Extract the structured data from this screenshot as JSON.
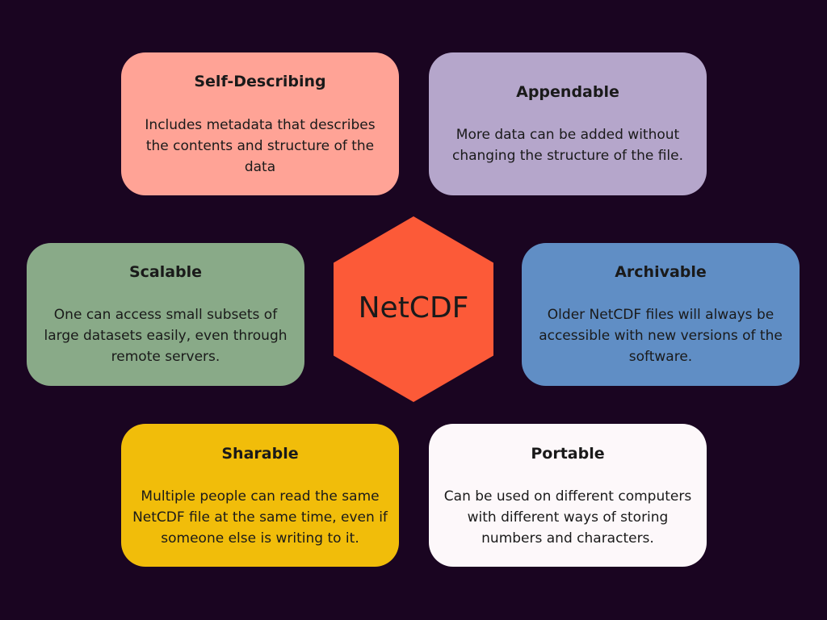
{
  "center": {
    "label": "NetCDF",
    "color": "#fc5a38"
  },
  "cards": {
    "self_describing": {
      "title": "Self-Describing",
      "description": "Includes metadata that describes the contents and structure of the data",
      "color": "#ffa396"
    },
    "appendable": {
      "title": "Appendable",
      "description": "More data can be added without changing the structure of the file.",
      "color": "#b5a6cb"
    },
    "scalable": {
      "title": "Scalable",
      "description": "One can access small subsets of large datasets easily, even through remote servers.",
      "color": "#89aa88"
    },
    "archivable": {
      "title": "Archivable",
      "description": "Older NetCDF files will always be accessible with new versions of the software.",
      "color": "#608ec5"
    },
    "sharable": {
      "title": "Sharable",
      "description": "Multiple people can read the same NetCDF file at the same time, even if someone else is writing to it.",
      "color": "#f1bd0a"
    },
    "portable": {
      "title": "Portable",
      "description": "Can be used on different computers with different ways of storing numbers and characters.",
      "color": "#fdf8fa"
    }
  },
  "background_color": "#1a0521"
}
